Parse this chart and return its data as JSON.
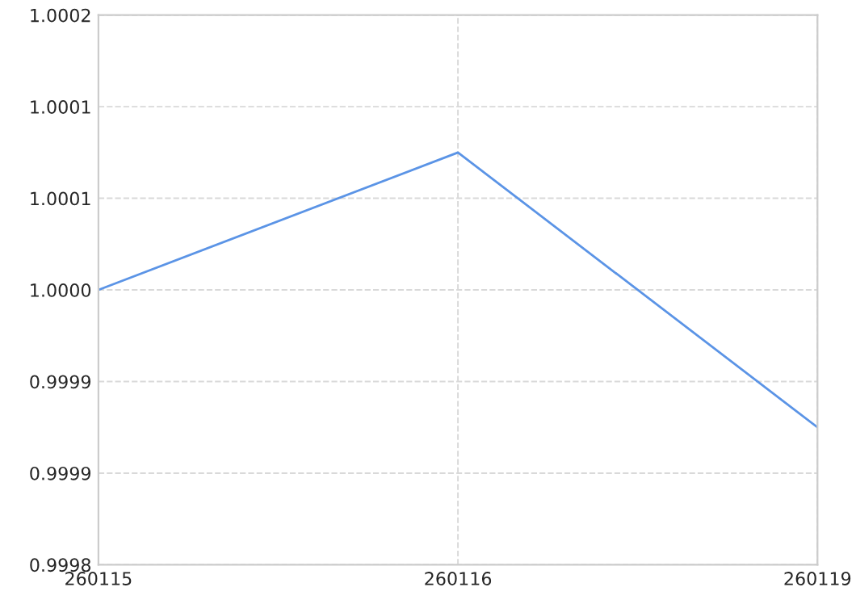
{
  "chart_data": {
    "type": "line",
    "categories": [
      "260115",
      "260116",
      "260119"
    ],
    "series": [
      {
        "color": "#5b94e6",
        "values": [
          1.0,
          1.0001,
          0.9999
        ]
      }
    ],
    "ylim": [
      0.9998,
      1.0002
    ],
    "yticks": [
      {
        "value": 0.9998,
        "label": "0.9998"
      },
      {
        "value": 0.99986667,
        "label": "0.9999"
      },
      {
        "value": 0.99993333,
        "label": "0.9999"
      },
      {
        "value": 1.0,
        "label": "1.0000"
      },
      {
        "value": 1.00006667,
        "label": "1.0001"
      },
      {
        "value": 1.00013333,
        "label": "1.0001"
      },
      {
        "value": 1.0002,
        "label": "1.0002"
      }
    ],
    "grid": true,
    "line_style": "solid",
    "marker": "none"
  }
}
